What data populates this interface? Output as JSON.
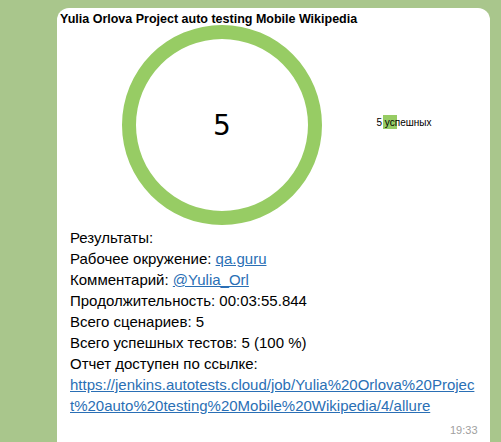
{
  "chart_data": {
    "type": "donut",
    "title": "Yulia Orlova Project auto testing Mobile Wikipedia",
    "categories": [
      "5 успешных"
    ],
    "values": [
      5
    ],
    "colors": [
      "#97cc64"
    ],
    "total": 5,
    "legend": "right",
    "data_labels": false
  },
  "message": {
    "heading": "Результаты:",
    "lines": [
      {
        "label": "Рабочее окружение: ",
        "link": "qa.guru"
      },
      {
        "label": "Комментарий: ",
        "link": "@Yulia_Orl"
      },
      {
        "label": "Продолжительность: 00:03:55.844"
      },
      {
        "label": "Всего сценариев: 5"
      },
      {
        "label": "Всего успешных тестов: 5 (100 %)"
      },
      {
        "label": "Отчет доступен по ссылке:"
      }
    ],
    "report_link": "https://jenkins.autotests.cloud/job/Yulia%20Orlova%20Project%20auto%20testing%20Mobile%20Wikipedia/4/allure",
    "time": "19:33"
  }
}
